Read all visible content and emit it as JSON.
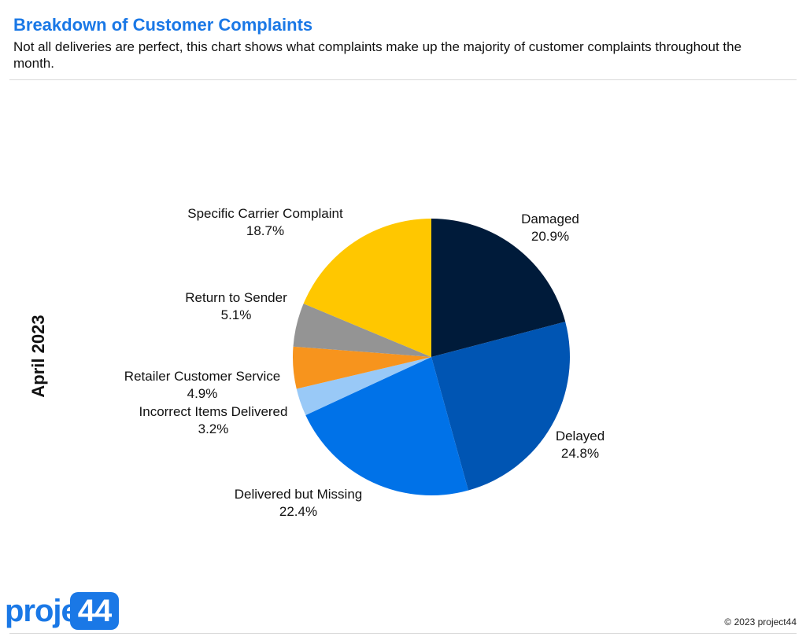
{
  "header": {
    "title": "Breakdown of Customer Complaints",
    "subtitle": "Not all deliveries are perfect, this chart shows what complaints make up the majority of customer complaints throughout the month."
  },
  "chart_data": {
    "type": "pie",
    "title": "Breakdown of Customer Complaints",
    "group_label": "April 2023",
    "slices": [
      {
        "label": "Damaged",
        "value": 20.9,
        "display": "20.9%",
        "color": "#001b3a"
      },
      {
        "label": "Delayed",
        "value": 24.8,
        "display": "24.8%",
        "color": "#0055b3"
      },
      {
        "label": "Delivered but Missing",
        "value": 22.4,
        "display": "22.4%",
        "color": "#0072e8"
      },
      {
        "label": "Incorrect Items Delivered",
        "value": 3.2,
        "display": "3.2%",
        "color": "#99c9f7"
      },
      {
        "label": "Retailer Customer Service",
        "value": 4.9,
        "display": "4.9%",
        "color": "#f7941d"
      },
      {
        "label": "Return to Sender",
        "value": 5.1,
        "display": "5.1%",
        "color": "#949494"
      },
      {
        "label": "Specific Carrier Complaint",
        "value": 18.7,
        "display": "18.7%",
        "color": "#ffc700"
      }
    ],
    "start_angle": "12 o'clock",
    "direction": "clockwise",
    "legend": "none"
  },
  "footer": {
    "logo_text": "project",
    "logo_badge": "44",
    "copyright": "© 2023 project44"
  }
}
